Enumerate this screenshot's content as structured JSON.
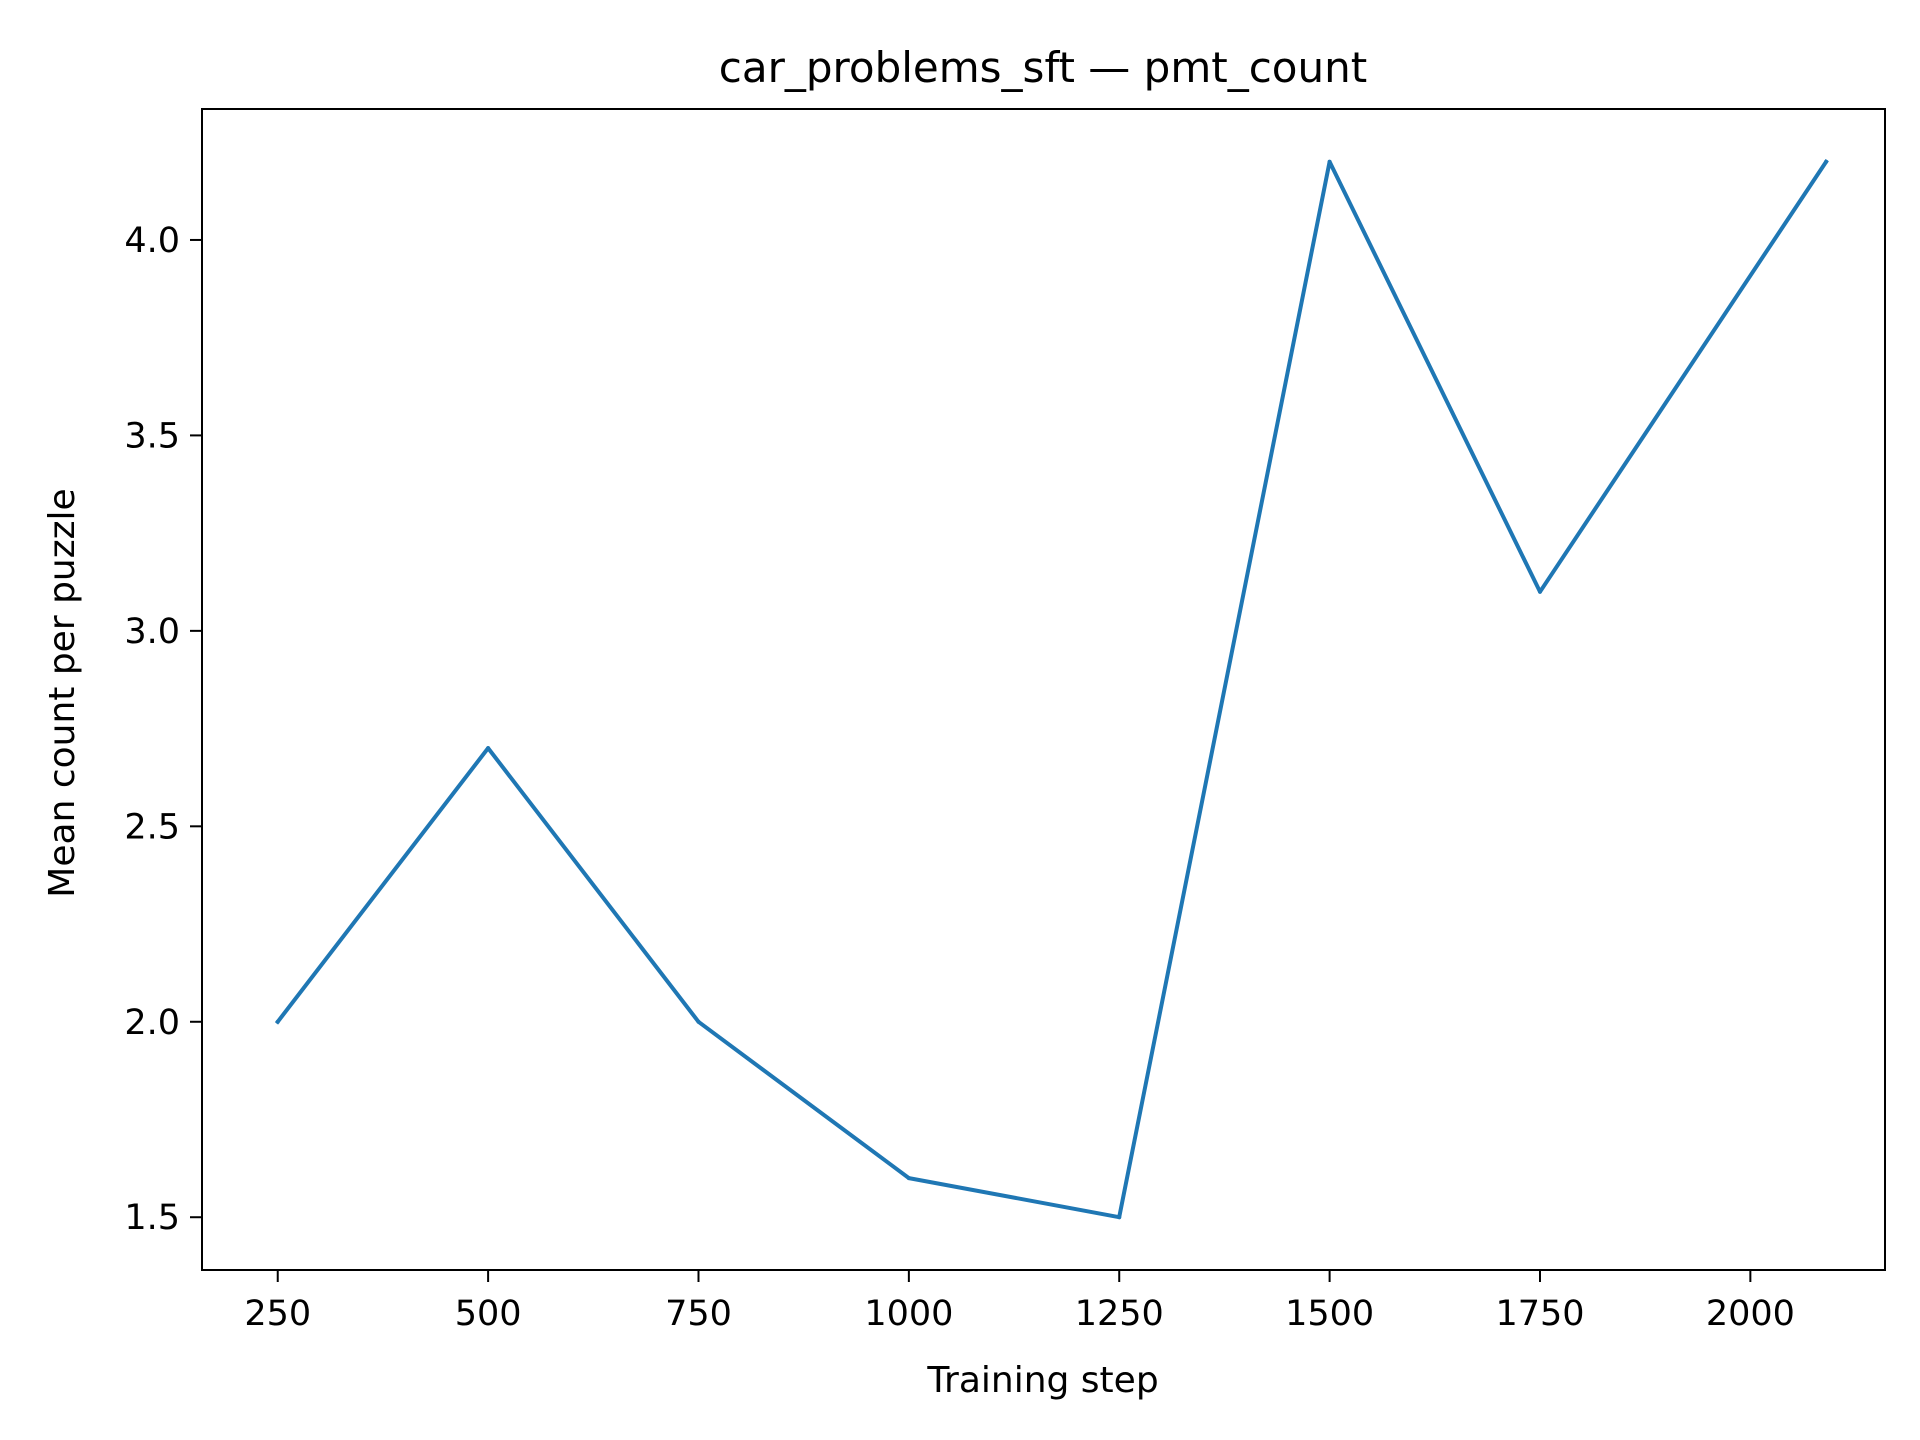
{
  "chart_data": {
    "type": "line",
    "title": "car_problems_sft — pmt_count",
    "xlabel": "Training step",
    "ylabel": "Mean count per puzzle",
    "xlim": [
      160,
      2160
    ],
    "ylim": [
      1.365,
      4.335
    ],
    "x_ticks": [
      250,
      500,
      750,
      1000,
      1250,
      1500,
      1750,
      2000
    ],
    "y_ticks": [
      1.5,
      2.0,
      2.5,
      3.0,
      3.5,
      4.0
    ],
    "x_tick_labels": [
      "250",
      "500",
      "750",
      "1000",
      "1250",
      "1500",
      "1750",
      "2000"
    ],
    "y_tick_labels": [
      "1.5",
      "2.0",
      "2.5",
      "3.0",
      "3.5",
      "4.0"
    ],
    "grid": false,
    "series": [
      {
        "color": "#1f77b4",
        "x": [
          250,
          500,
          750,
          1000,
          1250,
          1500,
          1750,
          2090
        ],
        "y": [
          2.0,
          2.7,
          2.0,
          1.6,
          1.5,
          4.2,
          3.1,
          4.2
        ]
      }
    ]
  }
}
